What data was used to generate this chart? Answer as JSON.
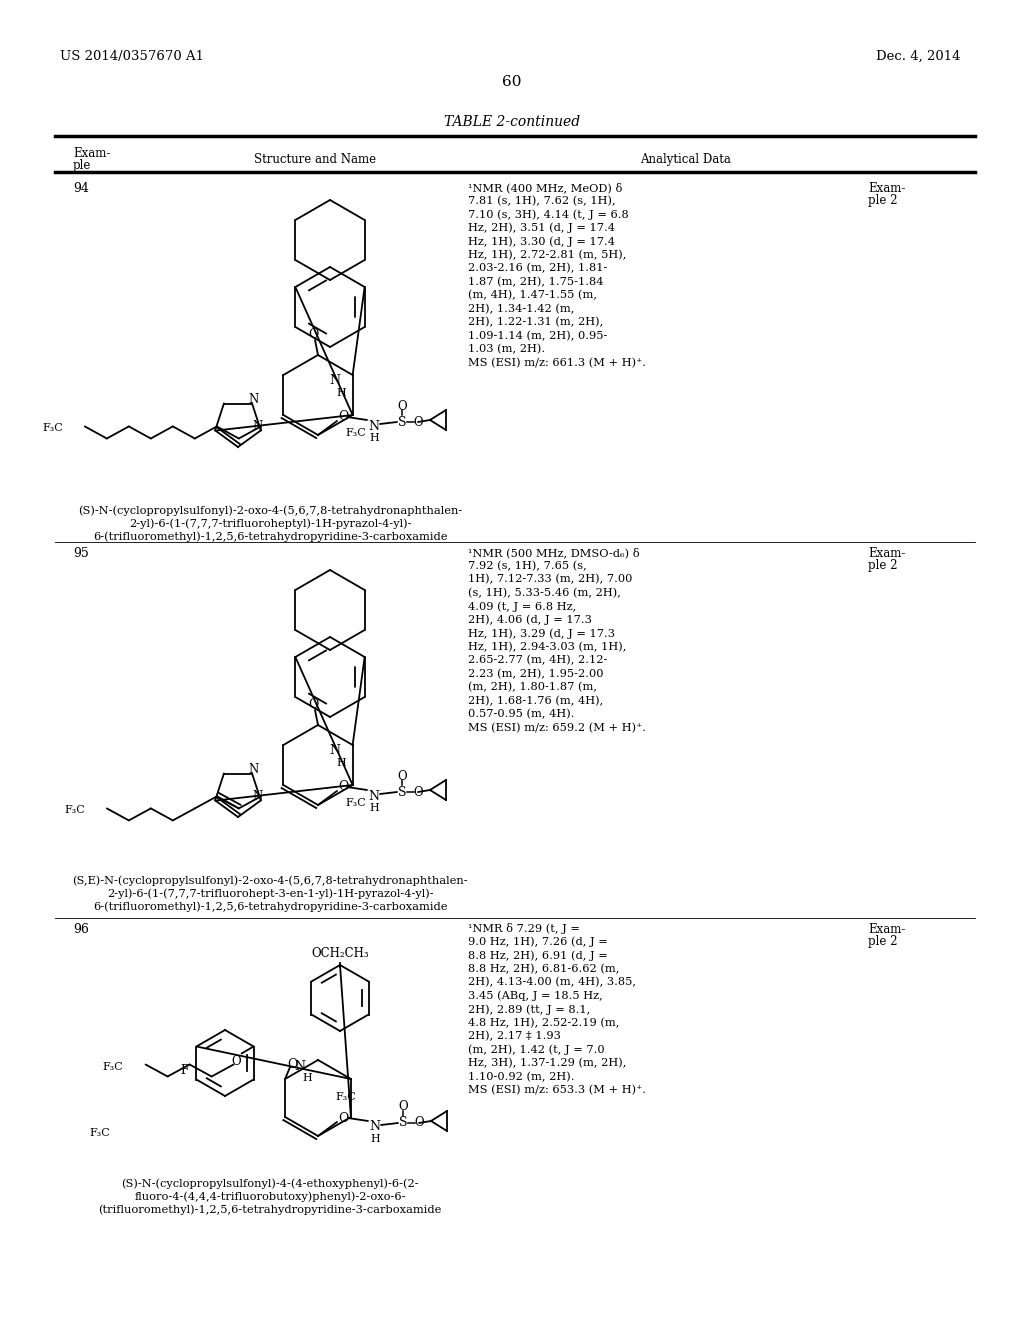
{
  "page_left_text": "US 2014/0357670 A1",
  "page_right_text": "Dec. 4, 2014",
  "page_number": "60",
  "table_title": "TABLE 2-continued",
  "col1_header": [
    "Exam-",
    "ple"
  ],
  "col2_header": "Structure and Name",
  "col3_header": "Analytical Data",
  "entry94": {
    "id": "94",
    "nmr": "1NMR (400 MHz, MeOD) d\n7.81 (s, 1H), 7.62 (s, 1H),\n7.10 (s, 3H), 4.14 (t, J = 6.8\nHz, 2H), 3.51 (d, J = 17.4\nHz, 1H), 3.30 (d, J = 17.4\nHz, 1H), 2.72-2.81 (m, 5H),\n2.03-2.16 (m, 2H), 1.81-\n1.87 (m, 2H), 1.75-1.84\n(m, 4H), 1.47-1.55 (m,\n2H), 1.34-1.42 (m,\n2H), 1.22-1.31 (m, 2H),\n1.09-1.14 (m, 2H), 0.95-\n1.03 (m, 2H).\nMS (ESI) m/z: 661.3 (M + H)+.",
    "ref": "Exam-\nple 2",
    "name": "(S)-N-(cyclopropylsulfonyl)-2-oxo-4-(5,6,7,8-tetrahydronaphthalen-\n2-yl)-6-(1-(7,7,7-trifluoroheptyl)-1H-pyrazol-4-yl)-\n6-(trifluoromethyl)-1,2,5,6-tetrahydropyridine-3-carboxamide"
  },
  "entry95": {
    "id": "95",
    "nmr": "1NMR (500 MHz, DMSO-d6) d\n7.92 (s, 1H), 7.65 (s,\n1H), 7.12-7.33 (m, 2H), 7.00\n(s, 1H), 5.33-5.46 (m, 2H),\n4.09 (t, J = 6.8 Hz,\n2H), 4.06 (d, J = 17.3\nHz, 1H), 3.29 (d, J = 17.3\nHz, 1H), 2.94-3.03 (m, 1H),\n2.65-2.77 (m, 4H), 2.12-\n2.23 (m, 2H), 1.95-2.00\n(m, 2H), 1.80-1.87 (m,\n2H), 1.68-1.76 (m, 4H),\n0.57-0.95 (m, 4H).\nMS (ESI) m/z: 659.2 (M + H)+.",
    "ref": "Exam-\nple 2",
    "name": "(S,E)-N-(cyclopropylsulfonyl)-2-oxo-4-(5,6,7,8-tetrahydronaphthalen-\n2-yl)-6-(1-(7,7,7-trifluorohept-3-en-1-yl)-1H-pyrazol-4-yl)-\n6-(trifluoromethyl)-1,2,5,6-tetrahydropyridine-3-carboxamide"
  },
  "entry96": {
    "id": "96",
    "nmr": "1NMR d 7.29 (t, J =\n9.0 Hz, 1H), 7.26 (d, J =\n8.8 Hz, 2H), 6.91 (d, J =\n8.8 Hz, 2H), 6.81-6.62 (m,\n2H), 4.13-4.00 (m, 4H), 3.85,\n3.45 (ABq, J = 18.5 Hz,\n2H), 2.89 (tt, J = 8.1,\n4.8 Hz, 1H), 2.52-2.19 (m,\n2H), 2.17 ? 1.93\n(m, 2H), 1.42 (t, J = 7.0\nHz, 3H), 1.37-1.29 (m, 2H),\n1.10-0.92 (m, 2H).\nMS (ESI) m/z: 653.3 (M + H)+.",
    "ref": "Exam-\nple 2",
    "name": "(S)-N-(cyclopropylsulfonyl)-4-(4-ethoxyphenyl)-6-(2-\nfluoro-4-(4,4,4-trifluorobutoxy)phenyl)-2-oxo-6-\n(trifluoromethyl)-1,2,5,6-tetrahydropyridine-3-carboxamide"
  }
}
